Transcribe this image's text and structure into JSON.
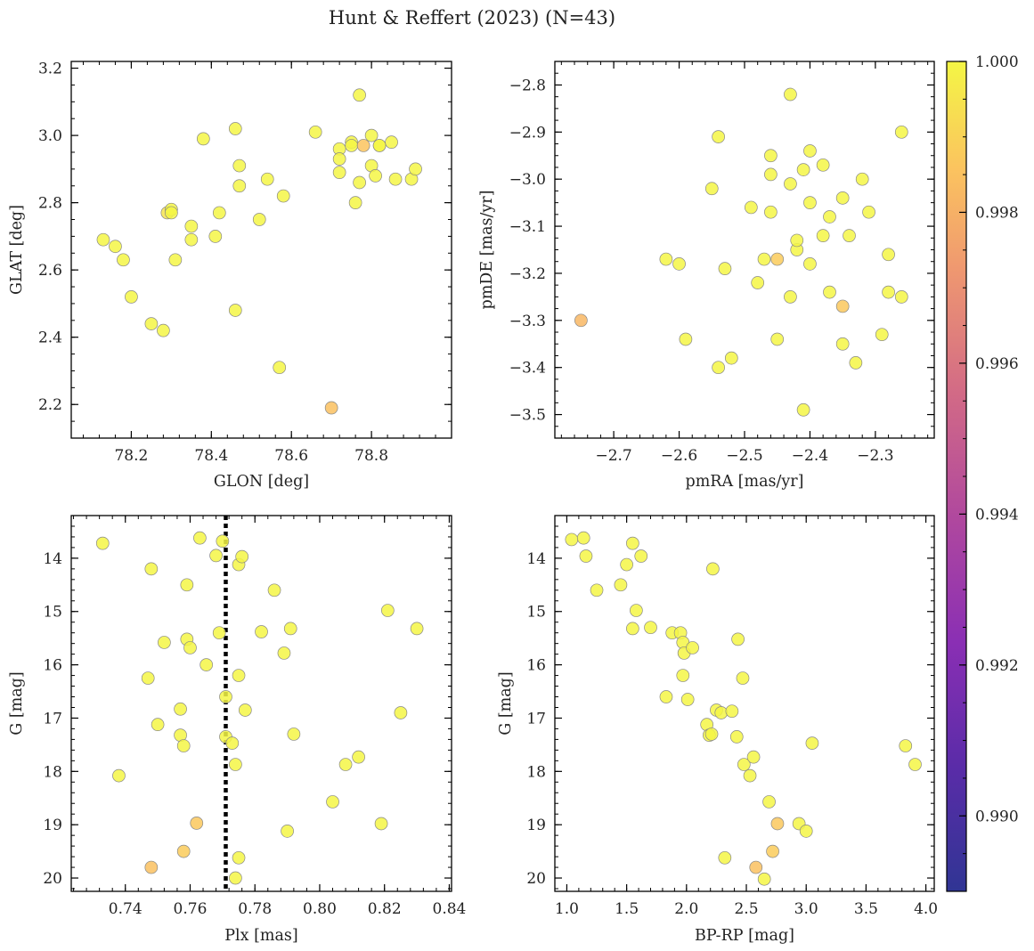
{
  "title": "Hunt & Reffert (2023) (N=43)",
  "colors": {
    "point_edge": "#888888",
    "vline": "#000000"
  },
  "colorbar": {
    "range": [
      0.989,
      1.0
    ],
    "ticks": [
      0.99,
      0.992,
      0.994,
      0.996,
      0.998,
      1.0
    ],
    "tick_labels": [
      "0.990",
      "0.992",
      "0.994",
      "0.996",
      "0.998",
      "1.000"
    ],
    "colormap": "plasma"
  },
  "chart_data": [
    {
      "type": "scatter",
      "id": "glon-glat",
      "xlabel": "GLON [deg]",
      "ylabel": "GLAT [deg]",
      "xlim": [
        78.05,
        79.0
      ],
      "ylim": [
        2.1,
        3.22
      ],
      "xticks": [
        78.2,
        78.4,
        78.6,
        78.8
      ],
      "xtick_labels": [
        "78.2",
        "78.4",
        "78.6",
        "78.8"
      ],
      "yticks": [
        2.2,
        2.4,
        2.6,
        2.8,
        3.0,
        3.2
      ],
      "ytick_labels": [
        "2.2",
        "2.4",
        "2.6",
        "2.8",
        "3.0",
        "3.2"
      ],
      "yinvert": false,
      "points": [
        [
          78.13,
          2.69,
          1.0
        ],
        [
          78.16,
          2.67,
          1.0
        ],
        [
          78.18,
          2.63,
          1.0
        ],
        [
          78.2,
          2.52,
          1.0
        ],
        [
          78.25,
          2.44,
          1.0
        ],
        [
          78.28,
          2.42,
          1.0
        ],
        [
          78.29,
          2.77,
          0.9995
        ],
        [
          78.3,
          2.78,
          1.0
        ],
        [
          78.3,
          2.77,
          1.0
        ],
        [
          78.31,
          2.63,
          1.0
        ],
        [
          78.35,
          2.69,
          1.0
        ],
        [
          78.35,
          2.73,
          1.0
        ],
        [
          78.38,
          2.99,
          1.0
        ],
        [
          78.41,
          2.7,
          1.0
        ],
        [
          78.42,
          2.77,
          1.0
        ],
        [
          78.46,
          3.02,
          1.0
        ],
        [
          78.46,
          2.48,
          1.0
        ],
        [
          78.47,
          2.91,
          1.0
        ],
        [
          78.47,
          2.85,
          1.0
        ],
        [
          78.52,
          2.75,
          1.0
        ],
        [
          78.54,
          2.87,
          1.0
        ],
        [
          78.57,
          2.31,
          1.0
        ],
        [
          78.58,
          2.82,
          1.0
        ],
        [
          78.66,
          3.01,
          1.0
        ],
        [
          78.7,
          2.19,
          0.9985
        ],
        [
          78.72,
          2.96,
          1.0
        ],
        [
          78.72,
          2.93,
          1.0
        ],
        [
          78.72,
          2.89,
          1.0
        ],
        [
          78.75,
          2.98,
          1.0
        ],
        [
          78.75,
          2.97,
          1.0
        ],
        [
          78.76,
          2.8,
          1.0
        ],
        [
          78.77,
          3.12,
          1.0
        ],
        [
          78.77,
          2.86,
          1.0
        ],
        [
          78.78,
          2.97,
          0.9986
        ],
        [
          78.8,
          2.91,
          1.0
        ],
        [
          78.8,
          3.0,
          1.0
        ],
        [
          78.81,
          2.88,
          1.0
        ],
        [
          78.82,
          2.97,
          1.0
        ],
        [
          78.82,
          2.97,
          1.0
        ],
        [
          78.85,
          2.98,
          1.0
        ],
        [
          78.86,
          2.87,
          1.0
        ],
        [
          78.9,
          2.87,
          1.0
        ],
        [
          78.91,
          2.9,
          1.0
        ]
      ]
    },
    {
      "type": "scatter",
      "id": "pmra-pmde",
      "xlabel": "pmRA [mas/yr]",
      "ylabel": "pmDE [mas/yr]",
      "xlim": [
        -2.79,
        -2.21
      ],
      "ylim": [
        -3.55,
        -2.75
      ],
      "xticks": [
        -2.7,
        -2.6,
        -2.5,
        -2.4,
        -2.3
      ],
      "xtick_labels": [
        "−2.7",
        "−2.6",
        "−2.5",
        "−2.4",
        "−2.3"
      ],
      "yticks": [
        -3.5,
        -3.4,
        -3.3,
        -3.2,
        -3.1,
        -3.0,
        -2.9,
        -2.8
      ],
      "ytick_labels": [
        "−3.5",
        "−3.4",
        "−3.3",
        "−3.2",
        "−3.1",
        "−3.0",
        "−2.9",
        "−2.8"
      ],
      "yinvert": false,
      "points": [
        [
          -2.75,
          -3.3,
          0.9982
        ],
        [
          -2.62,
          -3.17,
          1.0
        ],
        [
          -2.6,
          -3.18,
          1.0
        ],
        [
          -2.59,
          -3.34,
          1.0
        ],
        [
          -2.55,
          -3.02,
          1.0
        ],
        [
          -2.54,
          -2.91,
          1.0
        ],
        [
          -2.54,
          -3.4,
          1.0
        ],
        [
          -2.53,
          -3.19,
          1.0
        ],
        [
          -2.52,
          -3.38,
          1.0
        ],
        [
          -2.49,
          -3.06,
          1.0
        ],
        [
          -2.48,
          -3.22,
          1.0
        ],
        [
          -2.47,
          -3.17,
          1.0
        ],
        [
          -2.46,
          -2.95,
          1.0
        ],
        [
          -2.46,
          -2.99,
          1.0
        ],
        [
          -2.46,
          -3.07,
          1.0
        ],
        [
          -2.45,
          -3.34,
          1.0
        ],
        [
          -2.45,
          -3.17,
          0.9988
        ],
        [
          -2.43,
          -2.82,
          1.0
        ],
        [
          -2.43,
          -3.01,
          1.0
        ],
        [
          -2.43,
          -3.25,
          1.0
        ],
        [
          -2.42,
          -3.15,
          1.0
        ],
        [
          -2.42,
          -3.13,
          1.0
        ],
        [
          -2.41,
          -2.98,
          1.0
        ],
        [
          -2.41,
          -3.49,
          1.0
        ],
        [
          -2.4,
          -2.94,
          1.0
        ],
        [
          -2.4,
          -3.05,
          1.0
        ],
        [
          -2.4,
          -3.18,
          1.0
        ],
        [
          -2.38,
          -2.97,
          1.0
        ],
        [
          -2.38,
          -3.12,
          1.0
        ],
        [
          -2.37,
          -3.08,
          1.0
        ],
        [
          -2.37,
          -3.24,
          1.0
        ],
        [
          -2.35,
          -3.04,
          1.0
        ],
        [
          -2.35,
          -3.35,
          1.0
        ],
        [
          -2.35,
          -3.27,
          0.9987
        ],
        [
          -2.34,
          -3.12,
          1.0
        ],
        [
          -2.33,
          -3.39,
          1.0
        ],
        [
          -2.32,
          -3.0,
          1.0
        ],
        [
          -2.31,
          -3.07,
          1.0
        ],
        [
          -2.29,
          -3.33,
          1.0
        ],
        [
          -2.28,
          -3.16,
          1.0
        ],
        [
          -2.28,
          -3.24,
          1.0
        ],
        [
          -2.26,
          -3.25,
          1.0
        ],
        [
          -2.26,
          -2.9,
          1.0
        ]
      ]
    },
    {
      "type": "scatter",
      "id": "plx-g",
      "xlabel": "Plx [mas]",
      "ylabel": "G [mag]",
      "xlim": [
        0.7233,
        0.8407
      ],
      "ylim": [
        20.25,
        13.2
      ],
      "xticks": [
        0.74,
        0.76,
        0.78,
        0.8,
        0.82,
        0.84
      ],
      "xtick_labels": [
        "0.74",
        "0.76",
        "0.78",
        "0.80",
        "0.82",
        "0.84"
      ],
      "yticks": [
        14,
        15,
        16,
        17,
        18,
        19,
        20
      ],
      "ytick_labels": [
        "14",
        "15",
        "16",
        "17",
        "18",
        "19",
        "20"
      ],
      "yinvert": true,
      "vline": 0.771,
      "points": [
        [
          0.733,
          13.72,
          1.0
        ],
        [
          0.738,
          18.08,
          1.0
        ],
        [
          0.747,
          16.25,
          1.0
        ],
        [
          0.748,
          19.8,
          0.9985
        ],
        [
          0.748,
          14.2,
          1.0
        ],
        [
          0.75,
          17.12,
          1.0
        ],
        [
          0.752,
          15.58,
          1.0
        ],
        [
          0.757,
          17.32,
          1.0
        ],
        [
          0.757,
          16.83,
          1.0
        ],
        [
          0.758,
          19.5,
          0.9988
        ],
        [
          0.758,
          17.52,
          1.0
        ],
        [
          0.759,
          15.52,
          1.0
        ],
        [
          0.759,
          14.5,
          1.0
        ],
        [
          0.76,
          15.68,
          1.0
        ],
        [
          0.762,
          18.97,
          0.9987
        ],
        [
          0.763,
          13.62,
          1.0
        ],
        [
          0.768,
          13.95,
          1.0
        ],
        [
          0.769,
          15.4,
          1.0
        ],
        [
          0.77,
          13.68,
          1.0
        ],
        [
          0.771,
          17.35,
          1.0
        ],
        [
          0.771,
          16.6,
          1.0
        ],
        [
          0.773,
          17.47,
          1.0
        ],
        [
          0.774,
          20.0,
          1.0
        ],
        [
          0.774,
          17.87,
          1.0
        ],
        [
          0.775,
          19.62,
          1.0
        ],
        [
          0.775,
          14.12,
          1.0
        ],
        [
          0.775,
          16.2,
          1.0
        ],
        [
          0.776,
          13.97,
          1.0
        ],
        [
          0.777,
          16.85,
          1.0
        ],
        [
          0.782,
          15.38,
          1.0
        ],
        [
          0.786,
          14.6,
          1.0
        ],
        [
          0.789,
          15.78,
          1.0
        ],
        [
          0.79,
          19.12,
          1.0
        ],
        [
          0.791,
          15.32,
          1.0
        ],
        [
          0.792,
          17.3,
          1.0
        ],
        [
          0.804,
          18.57,
          1.0
        ],
        [
          0.808,
          17.87,
          1.0
        ],
        [
          0.812,
          17.73,
          1.0
        ],
        [
          0.819,
          18.98,
          1.0
        ],
        [
          0.821,
          14.98,
          1.0
        ],
        [
          0.825,
          16.9,
          1.0
        ],
        [
          0.83,
          15.32,
          1.0
        ],
        [
          0.765,
          16.0,
          1.0
        ]
      ]
    },
    {
      "type": "scatter",
      "id": "bprp-g",
      "xlabel": "BP-RP [mag]",
      "ylabel": "G [mag]",
      "xlim": [
        0.9,
        4.07
      ],
      "ylim": [
        20.25,
        13.2
      ],
      "xticks": [
        1.0,
        1.5,
        2.0,
        2.5,
        3.0,
        3.5,
        4.0
      ],
      "xtick_labels": [
        "1.0",
        "1.5",
        "2.0",
        "2.5",
        "3.0",
        "3.5",
        "4.0"
      ],
      "yticks": [
        14,
        15,
        16,
        17,
        18,
        19,
        20
      ],
      "ytick_labels": [
        "14",
        "15",
        "16",
        "17",
        "18",
        "19",
        "20"
      ],
      "yinvert": true,
      "points": [
        [
          1.04,
          13.65,
          1.0
        ],
        [
          1.14,
          13.62,
          1.0
        ],
        [
          1.16,
          13.96,
          1.0
        ],
        [
          1.25,
          14.6,
          1.0
        ],
        [
          1.45,
          14.5,
          1.0
        ],
        [
          1.5,
          14.12,
          1.0
        ],
        [
          1.55,
          13.72,
          1.0
        ],
        [
          1.55,
          15.32,
          1.0
        ],
        [
          1.58,
          14.98,
          1.0
        ],
        [
          1.62,
          13.96,
          1.0
        ],
        [
          1.7,
          15.3,
          1.0
        ],
        [
          1.83,
          16.6,
          1.0
        ],
        [
          1.88,
          15.4,
          1.0
        ],
        [
          1.95,
          15.4,
          1.0
        ],
        [
          1.97,
          15.58,
          1.0
        ],
        [
          1.97,
          16.2,
          1.0
        ],
        [
          1.98,
          15.78,
          1.0
        ],
        [
          2.01,
          16.65,
          1.0
        ],
        [
          2.05,
          15.68,
          1.0
        ],
        [
          2.17,
          17.12,
          1.0
        ],
        [
          2.19,
          17.32,
          1.0
        ],
        [
          2.21,
          17.3,
          1.0
        ],
        [
          2.22,
          14.2,
          1.0
        ],
        [
          2.25,
          16.85,
          1.0
        ],
        [
          2.29,
          16.9,
          1.0
        ],
        [
          2.32,
          19.62,
          1.0
        ],
        [
          2.38,
          16.87,
          1.0
        ],
        [
          2.42,
          17.35,
          1.0
        ],
        [
          2.43,
          15.52,
          1.0
        ],
        [
          2.47,
          16.25,
          1.0
        ],
        [
          2.48,
          17.87,
          1.0
        ],
        [
          2.53,
          18.08,
          1.0
        ],
        [
          2.56,
          17.73,
          1.0
        ],
        [
          2.58,
          19.8,
          0.9985
        ],
        [
          2.65,
          20.02,
          1.0
        ],
        [
          2.69,
          18.57,
          1.0
        ],
        [
          2.72,
          19.5,
          0.9988
        ],
        [
          2.76,
          18.98,
          0.9987
        ],
        [
          2.94,
          18.98,
          1.0
        ],
        [
          3.0,
          19.12,
          1.0
        ],
        [
          3.05,
          17.47,
          1.0
        ],
        [
          3.83,
          17.52,
          1.0
        ],
        [
          3.91,
          17.87,
          1.0
        ]
      ]
    }
  ]
}
